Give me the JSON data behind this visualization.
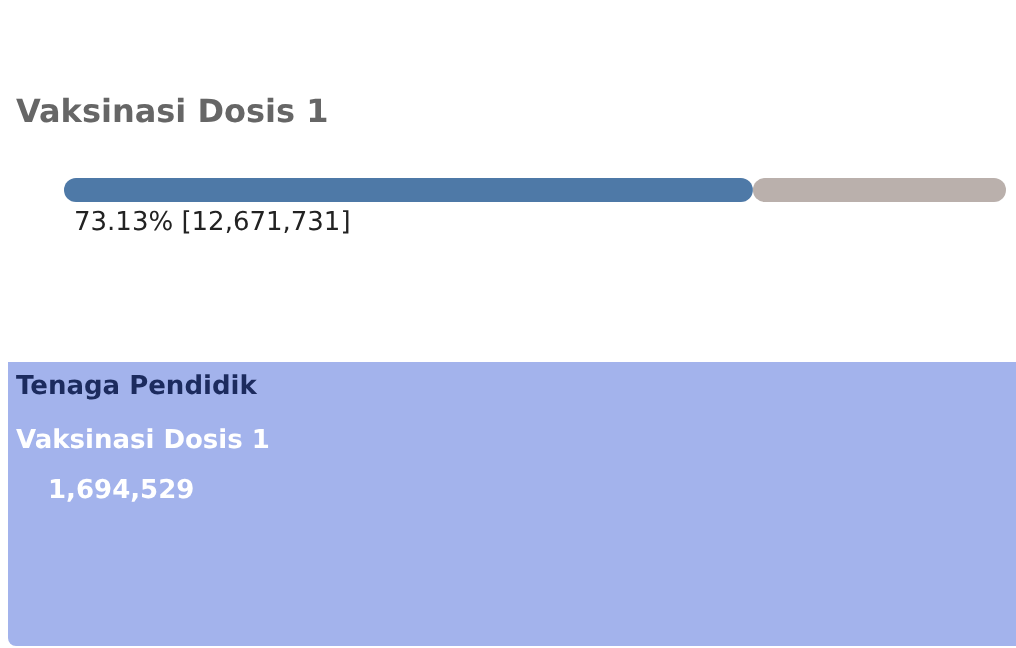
{
  "chart_data": [
    {
      "type": "bar",
      "title": "Vaksinasi Dosis 1",
      "orientation": "horizontal",
      "stacked": true,
      "categories": [
        null
      ],
      "xlim": [
        0,
        100
      ],
      "tick_labels": false,
      "series": [
        {
          "color": "#4e79a7",
          "values": [
            73.13
          ],
          "value_labels": [
            "73.13% [12,671,731]"
          ]
        },
        {
          "color": "#bab0ac",
          "values": [
            26.87
          ]
        }
      ]
    },
    {
      "type": "other",
      "title": "Tenaga Pendidik",
      "subtitle": "Vaksinasi Dosis 1",
      "color": "#a3b3ec",
      "annotations": [
        "1,694,529"
      ]
    }
  ]
}
